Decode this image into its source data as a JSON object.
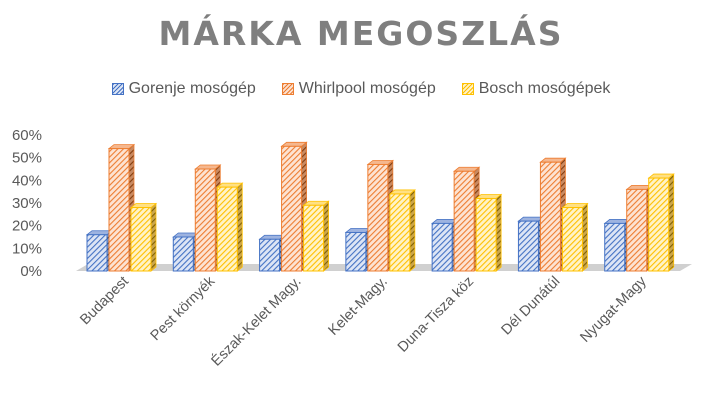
{
  "chart_data": {
    "type": "bar",
    "title": "MÁRKA MEGOSZLÁS",
    "categories": [
      "Budapest",
      "Pest környék",
      "Észak-Kelet Magy.",
      "Kelet-Magy.",
      "Duna-Tisza köz",
      "Dél Dunátúl",
      "Nyugat-Magy"
    ],
    "series": [
      {
        "name": "Gorenje mosógép",
        "values": [
          16,
          15,
          14,
          17,
          21,
          22,
          21
        ],
        "color": "#4472c4"
      },
      {
        "name": "Whirlpool mosógép",
        "values": [
          54,
          45,
          55,
          47,
          44,
          48,
          36
        ],
        "color": "#ed7d31"
      },
      {
        "name": "Bosch mosógépek",
        "values": [
          28,
          37,
          29,
          34,
          32,
          28,
          41
        ],
        "color": "#ffc000"
      }
    ],
    "y_ticks": [
      "0%",
      "10%",
      "20%",
      "30%",
      "40%",
      "50%",
      "60%"
    ],
    "ylim": [
      0,
      60
    ],
    "legend_position": "top",
    "style": "3d-clustered-column-hatched"
  }
}
